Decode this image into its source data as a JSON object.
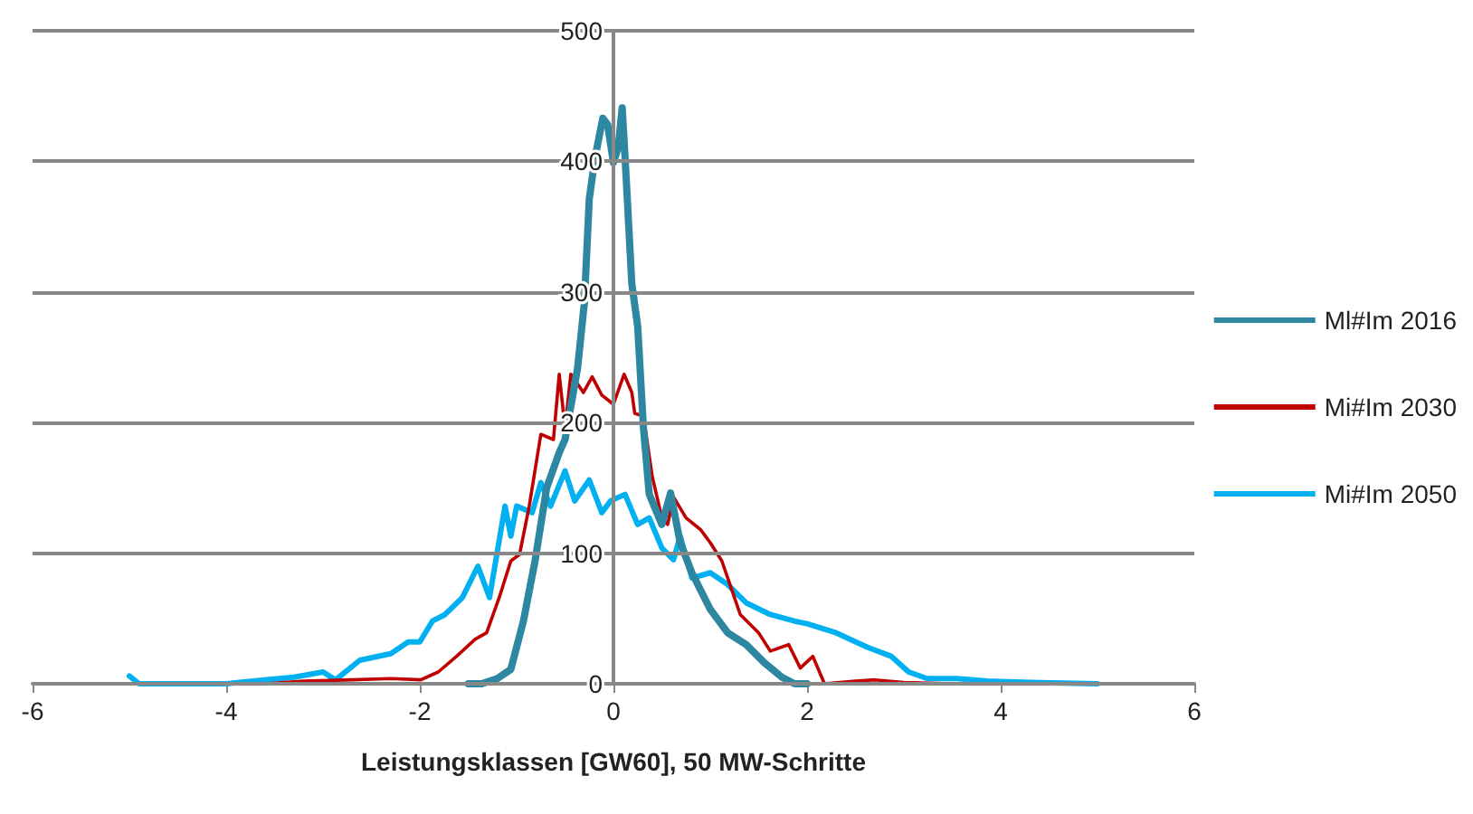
{
  "chart_data": {
    "type": "line",
    "xlabel": "Leistungsklassen [GW60], 50 MW-Schritte",
    "xlim": [
      -6,
      6
    ],
    "xticks": [
      -6,
      -4,
      -2,
      0,
      2,
      4,
      6
    ],
    "ylim": [
      0,
      500
    ],
    "yticks": [
      0,
      100,
      200,
      300,
      400,
      500
    ],
    "grid": "y",
    "legend": "right",
    "marker": "none",
    "line_style": "solid",
    "series": [
      {
        "name": "Ml#Im 2016",
        "color": "#2e87a0",
        "x": [
          -1.5,
          -1.36,
          -1.2,
          -1.06,
          -0.93,
          -0.81,
          -0.69,
          -0.56,
          -0.5,
          -0.37,
          -0.3,
          -0.25,
          -0.19,
          -0.11,
          -0.06,
          0,
          0.05,
          0.09,
          0.12,
          0.19,
          0.25,
          0.31,
          0.37,
          0.5,
          0.59,
          0.69,
          0.81,
          1.0,
          1.18,
          1.37,
          1.56,
          1.74,
          1.87,
          2.0
        ],
        "values": [
          0,
          0,
          4,
          11,
          48,
          94,
          150,
          177,
          187,
          242,
          292,
          371,
          403,
          433,
          428,
          399,
          411,
          441,
          403,
          306,
          274,
          196,
          145,
          122,
          146,
          108,
          85,
          57,
          39,
          30,
          16,
          5,
          0,
          0
        ]
      },
      {
        "name": "Mi#Im 2030",
        "color": "#c00000",
        "x": [
          -3.6,
          -3.2,
          -2.7,
          -2.3,
          -1.99,
          -1.81,
          -1.62,
          -1.43,
          -1.31,
          -1.18,
          -1.06,
          -0.97,
          -0.87,
          -0.75,
          -0.62,
          -0.56,
          -0.5,
          -0.44,
          -0.31,
          -0.22,
          -0.12,
          0,
          0.11,
          0.19,
          0.22,
          0.31,
          0.4,
          0.5,
          0.56,
          0.62,
          0.75,
          0.9,
          1.0,
          1.12,
          1.31,
          1.5,
          1.62,
          1.81,
          1.93,
          2.06,
          2.18,
          2.5,
          2.7,
          3.0,
          3.5
        ],
        "values": [
          0,
          2,
          3,
          4,
          3,
          9,
          21,
          34,
          39,
          66,
          94,
          99,
          136,
          191,
          187,
          237,
          196,
          237,
          223,
          235,
          221,
          214,
          237,
          223,
          207,
          205,
          159,
          127,
          122,
          143,
          127,
          118,
          108,
          94,
          53,
          39,
          25,
          30,
          12,
          21,
          0,
          2,
          3,
          1,
          0
        ]
      },
      {
        "name": "Mi#Im 2050",
        "color": "#00b0f0",
        "x": [
          -5,
          -4.9,
          -4.5,
          -4,
          -3.6,
          -3.3,
          -3.0,
          -2.87,
          -2.62,
          -2.3,
          -2.12,
          -2.0,
          -1.87,
          -1.74,
          -1.56,
          -1.4,
          -1.28,
          -1.12,
          -1.06,
          -1.0,
          -0.84,
          -0.75,
          -0.65,
          -0.5,
          -0.4,
          -0.25,
          -0.12,
          -0.03,
          0.12,
          0.25,
          0.37,
          0.5,
          0.62,
          0.69,
          0.81,
          1.0,
          1.18,
          1.37,
          1.62,
          1.87,
          2.0,
          2.3,
          2.62,
          2.87,
          3.05,
          3.24,
          3.55,
          3.86,
          4.3,
          5.0
        ],
        "values": [
          6,
          0,
          0,
          0,
          3,
          5,
          9,
          3,
          18,
          23,
          32,
          32,
          48,
          53,
          66,
          90,
          66,
          136,
          113,
          136,
          131,
          154,
          136,
          163,
          140,
          156,
          131,
          140,
          145,
          122,
          127,
          104,
          95,
          113,
          81,
          85,
          76,
          62,
          53,
          48,
          46,
          39,
          28,
          21,
          9,
          4,
          4,
          2,
          1,
          0
        ]
      }
    ]
  }
}
